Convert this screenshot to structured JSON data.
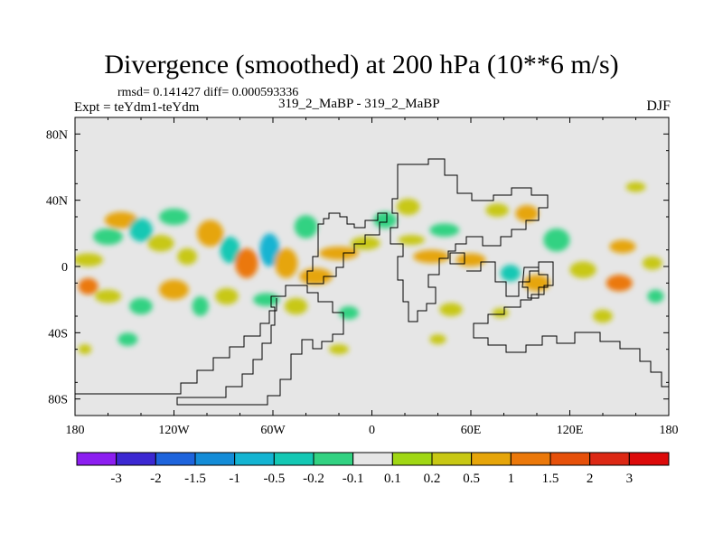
{
  "header": {
    "title": "Divergence (smoothed) at 200 hPa (10**6 m/s)",
    "stats": "rmsd= 0.141427 diff= 0.000593336",
    "expt": "Expt = teYdm1-teYdm",
    "runs": "319_2_MaBP - 319_2_MaBP",
    "season": "DJF"
  },
  "chart_data": {
    "type": "heatmap",
    "title": "Divergence (smoothed) at 200 hPa (10**6 m/s)",
    "xlabel": "",
    "ylabel": "",
    "xlim": [
      -180,
      180
    ],
    "ylim": [
      -90,
      90
    ],
    "x_ticks": [
      {
        "value": -180,
        "label": "180"
      },
      {
        "value": -120,
        "label": "120W"
      },
      {
        "value": -60,
        "label": "60W"
      },
      {
        "value": 0,
        "label": "0"
      },
      {
        "value": 60,
        "label": "60E"
      },
      {
        "value": 120,
        "label": "120E"
      },
      {
        "value": 180,
        "label": "180"
      }
    ],
    "y_ticks": [
      {
        "value": 80,
        "label": "80N"
      },
      {
        "value": 40,
        "label": "40N"
      },
      {
        "value": 0,
        "label": "0"
      },
      {
        "value": -40,
        "label": "40S"
      },
      {
        "value": -80,
        "label": "80S"
      }
    ],
    "background_color": "#e6e6e6",
    "colorbar": {
      "labels": [
        "-3",
        "-2",
        "-1.5",
        "-1",
        "-0.5",
        "-0.2",
        "-0.1",
        "0.1",
        "0.2",
        "0.5",
        "1",
        "1.5",
        "2",
        "3"
      ],
      "colors": [
        "#8c1ef0",
        "#3c28d2",
        "#1e64dc",
        "#148cd7",
        "#14b4d2",
        "#14c8b4",
        "#32d282",
        "#e6e6e6",
        "#a0d714",
        "#c8c814",
        "#e6a50a",
        "#eb780a",
        "#e6500a",
        "#dc2814",
        "#dc0a0a"
      ]
    },
    "cells": [
      {
        "lon": -172,
        "lat": 4,
        "lon_w": 18,
        "lat_h": 8,
        "value": 0.2
      },
      {
        "lon": -160,
        "lat": 18,
        "lon_w": 18,
        "lat_h": 10,
        "value": -0.2
      },
      {
        "lon": -152,
        "lat": 28,
        "lon_w": 20,
        "lat_h": 10,
        "value": 0.5
      },
      {
        "lon": -140,
        "lat": 22,
        "lon_w": 14,
        "lat_h": 14,
        "value": -0.5
      },
      {
        "lon": -128,
        "lat": 14,
        "lon_w": 16,
        "lat_h": 10,
        "value": 0.2
      },
      {
        "lon": -120,
        "lat": 30,
        "lon_w": 18,
        "lat_h": 10,
        "value": -0.2
      },
      {
        "lon": -112,
        "lat": 6,
        "lon_w": 12,
        "lat_h": 10,
        "value": 0.2
      },
      {
        "lon": -98,
        "lat": 20,
        "lon_w": 16,
        "lat_h": 16,
        "value": 0.5
      },
      {
        "lon": -86,
        "lat": 10,
        "lon_w": 12,
        "lat_h": 16,
        "value": -0.5
      },
      {
        "lon": -76,
        "lat": 2,
        "lon_w": 14,
        "lat_h": 18,
        "value": 1
      },
      {
        "lon": -62,
        "lat": 10,
        "lon_w": 12,
        "lat_h": 20,
        "value": -1
      },
      {
        "lon": -52,
        "lat": 2,
        "lon_w": 14,
        "lat_h": 18,
        "value": 0.5
      },
      {
        "lon": -40,
        "lat": 24,
        "lon_w": 14,
        "lat_h": 14,
        "value": -0.2
      },
      {
        "lon": -34,
        "lat": -6,
        "lon_w": 20,
        "lat_h": 10,
        "value": 0.5
      },
      {
        "lon": -20,
        "lat": 8,
        "lon_w": 24,
        "lat_h": 8,
        "value": 0.5
      },
      {
        "lon": -4,
        "lat": 14,
        "lon_w": 18,
        "lat_h": 8,
        "value": 0.2
      },
      {
        "lon": -172,
        "lat": -12,
        "lon_w": 12,
        "lat_h": 10,
        "value": 1
      },
      {
        "lon": -160,
        "lat": -18,
        "lon_w": 16,
        "lat_h": 8,
        "value": 0.2
      },
      {
        "lon": -140,
        "lat": -24,
        "lon_w": 14,
        "lat_h": 10,
        "value": -0.2
      },
      {
        "lon": -120,
        "lat": -14,
        "lon_w": 18,
        "lat_h": 12,
        "value": 0.5
      },
      {
        "lon": -104,
        "lat": -24,
        "lon_w": 10,
        "lat_h": 12,
        "value": -0.2
      },
      {
        "lon": -88,
        "lat": -18,
        "lon_w": 14,
        "lat_h": 10,
        "value": 0.2
      },
      {
        "lon": -64,
        "lat": -20,
        "lon_w": 16,
        "lat_h": 8,
        "value": -0.2
      },
      {
        "lon": -46,
        "lat": -24,
        "lon_w": 14,
        "lat_h": 10,
        "value": 0.2
      },
      {
        "lon": -14,
        "lat": -28,
        "lon_w": 12,
        "lat_h": 8,
        "value": -0.2
      },
      {
        "lon": -148,
        "lat": -44,
        "lon_w": 12,
        "lat_h": 8,
        "value": -0.2
      },
      {
        "lon": -174,
        "lat": -50,
        "lon_w": 8,
        "lat_h": 6,
        "value": 0.2
      },
      {
        "lon": -20,
        "lat": -50,
        "lon_w": 12,
        "lat_h": 6,
        "value": 0.2
      },
      {
        "lon": 8,
        "lat": 28,
        "lon_w": 14,
        "lat_h": 10,
        "value": -0.2
      },
      {
        "lon": 22,
        "lat": 36,
        "lon_w": 14,
        "lat_h": 10,
        "value": 0.2
      },
      {
        "lon": 24,
        "lat": 16,
        "lon_w": 16,
        "lat_h": 6,
        "value": 0.2
      },
      {
        "lon": 44,
        "lat": 22,
        "lon_w": 18,
        "lat_h": 8,
        "value": -0.2
      },
      {
        "lon": 36,
        "lat": 6,
        "lon_w": 22,
        "lat_h": 8,
        "value": 0.5
      },
      {
        "lon": 60,
        "lat": 4,
        "lon_w": 18,
        "lat_h": 8,
        "value": 0.5
      },
      {
        "lon": 76,
        "lat": 34,
        "lon_w": 14,
        "lat_h": 8,
        "value": 0.2
      },
      {
        "lon": 94,
        "lat": 32,
        "lon_w": 14,
        "lat_h": 10,
        "value": 0.5
      },
      {
        "lon": 84,
        "lat": -4,
        "lon_w": 12,
        "lat_h": 10,
        "value": -0.5
      },
      {
        "lon": 100,
        "lat": -10,
        "lon_w": 16,
        "lat_h": 10,
        "value": 0.5
      },
      {
        "lon": 112,
        "lat": 16,
        "lon_w": 16,
        "lat_h": 14,
        "value": -0.2
      },
      {
        "lon": 128,
        "lat": -2,
        "lon_w": 16,
        "lat_h": 10,
        "value": 0.2
      },
      {
        "lon": 152,
        "lat": 12,
        "lon_w": 16,
        "lat_h": 8,
        "value": 0.5
      },
      {
        "lon": 150,
        "lat": -10,
        "lon_w": 16,
        "lat_h": 10,
        "value": 1
      },
      {
        "lon": 170,
        "lat": 2,
        "lon_w": 12,
        "lat_h": 8,
        "value": 0.2
      },
      {
        "lon": 172,
        "lat": -18,
        "lon_w": 10,
        "lat_h": 8,
        "value": -0.2
      },
      {
        "lon": 160,
        "lat": 48,
        "lon_w": 12,
        "lat_h": 6,
        "value": 0.2
      },
      {
        "lon": 48,
        "lat": -26,
        "lon_w": 14,
        "lat_h": 8,
        "value": 0.2
      },
      {
        "lon": 78,
        "lat": -28,
        "lon_w": 10,
        "lat_h": 6,
        "value": 0.2
      },
      {
        "lon": 140,
        "lat": -30,
        "lon_w": 12,
        "lat_h": 8,
        "value": 0.2
      },
      {
        "lon": 40,
        "lat": -44,
        "lon_w": 10,
        "lat_h": 6,
        "value": 0.2
      }
    ]
  }
}
